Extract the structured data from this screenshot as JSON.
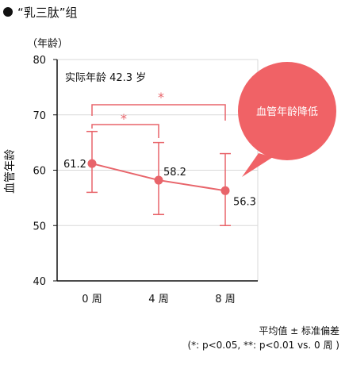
{
  "heading": "“乳三肽”组",
  "unit_label": "（年龄）",
  "chart_data": {
    "type": "line",
    "title": "",
    "xlabel": "",
    "ylabel": "血管年龄",
    "categories": [
      "0 周",
      "4 周",
      "8 周"
    ],
    "values": [
      61.2,
      58.2,
      56.3
    ],
    "error_upper": [
      67.0,
      65.0,
      63.0
    ],
    "error_lower": [
      56.0,
      52.0,
      50.0
    ],
    "ylim": [
      40,
      80
    ],
    "yticks": [
      40,
      50,
      60,
      70,
      80
    ],
    "grid": true,
    "data_labels": [
      "61.2",
      "58.2",
      "56.3"
    ],
    "annotations": {
      "actual_age": "实际年龄 42.3 岁",
      "callout": "血管年龄降低",
      "sig_inner": "*",
      "sig_outer": "*"
    },
    "colors": {
      "series": "#e8646a",
      "sig": "#e8646a",
      "callout": "#f06266",
      "grid": "#d9d9d9",
      "axis": "#111111"
    }
  },
  "footnotes": {
    "line1": "平均值 ± 标准偏差",
    "line2": "(*: p<0.05, **: p<0.01 vs. 0 周 )"
  }
}
